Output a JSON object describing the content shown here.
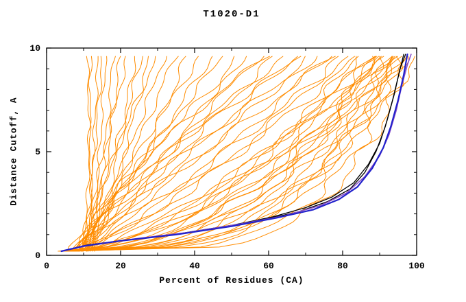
{
  "chart_data": {
    "type": "line",
    "title": "T1020-D1",
    "xlabel": "Percent of Residues (CA)",
    "ylabel": "Distance Cutoff, A",
    "xlim": [
      0,
      100
    ],
    "ylim": [
      0,
      10
    ],
    "x_ticks": [
      0,
      20,
      40,
      60,
      80,
      100
    ],
    "x_minor_ticks": [
      10,
      30,
      50,
      70,
      90
    ],
    "y_ticks": [
      0,
      5,
      10
    ],
    "y_minor_ticks": [
      1,
      2,
      3,
      4,
      6,
      7,
      8,
      9
    ],
    "grid": "off",
    "legend": "none",
    "colors": {
      "orange_models": "#ff8c00",
      "highlight_black": "#000000",
      "highlight_blue": "#2222cc",
      "highlight_purple": "#8a4fc8",
      "axis": "#000000",
      "background": "#ffffff"
    },
    "highlight_series": [
      {
        "name": "black-model-1",
        "color": "#000000",
        "width": 1.3,
        "points": [
          [
            4,
            0.2
          ],
          [
            9,
            0.4
          ],
          [
            18,
            0.65
          ],
          [
            32,
            0.95
          ],
          [
            46,
            1.3
          ],
          [
            58,
            1.7
          ],
          [
            68,
            2.1
          ],
          [
            76,
            2.6
          ],
          [
            82,
            3.2
          ],
          [
            86,
            4.0
          ],
          [
            89,
            5.0
          ],
          [
            91.5,
            6.2
          ],
          [
            93.5,
            7.5
          ],
          [
            95,
            8.6
          ],
          [
            96.5,
            9.7
          ]
        ]
      },
      {
        "name": "black-model-2",
        "color": "#000000",
        "width": 1.3,
        "points": [
          [
            4,
            0.2
          ],
          [
            11,
            0.5
          ],
          [
            22,
            0.75
          ],
          [
            36,
            1.05
          ],
          [
            50,
            1.45
          ],
          [
            61,
            1.85
          ],
          [
            70,
            2.3
          ],
          [
            77,
            2.8
          ],
          [
            83,
            3.5
          ],
          [
            87,
            4.4
          ],
          [
            90,
            5.4
          ],
          [
            92,
            6.5
          ],
          [
            94,
            7.8
          ],
          [
            95.5,
            9.0
          ],
          [
            97,
            9.7
          ]
        ]
      },
      {
        "name": "purple-model",
        "color": "#8a4fc8",
        "width": 1.6,
        "points": [
          [
            4,
            0.2
          ],
          [
            12,
            0.5
          ],
          [
            24,
            0.8
          ],
          [
            38,
            1.1
          ],
          [
            52,
            1.5
          ],
          [
            64,
            1.9
          ],
          [
            74,
            2.4
          ],
          [
            81,
            3.0
          ],
          [
            86,
            3.8
          ],
          [
            90,
            4.8
          ],
          [
            92.5,
            5.8
          ],
          [
            94.5,
            7.0
          ],
          [
            96,
            8.2
          ],
          [
            97.5,
            9.2
          ],
          [
            98.5,
            9.7
          ]
        ]
      },
      {
        "name": "blue-model",
        "color": "#2222cc",
        "width": 2.2,
        "points": [
          [
            4,
            0.2
          ],
          [
            10,
            0.45
          ],
          [
            20,
            0.7
          ],
          [
            35,
            1.0
          ],
          [
            50,
            1.4
          ],
          [
            62,
            1.8
          ],
          [
            72,
            2.2
          ],
          [
            79,
            2.7
          ],
          [
            84,
            3.3
          ],
          [
            88,
            4.2
          ],
          [
            91,
            5.2
          ],
          [
            93,
            6.2
          ],
          [
            95,
            7.5
          ],
          [
            96.5,
            8.7
          ],
          [
            97.5,
            9.7
          ]
        ]
      }
    ],
    "orange_series_param_format": "[percent_at_bottom, percent_at_top, shape_exponent] giving x(y)=start+(end-start)*((y-0.2)/9.5)^shape for y in [0.2, 9.7]",
    "orange_series_params": [
      [
        4,
        99,
        0.22
      ],
      [
        5,
        98,
        0.25
      ],
      [
        5,
        97,
        0.3
      ],
      [
        6,
        97,
        0.35
      ],
      [
        4,
        96,
        0.28
      ],
      [
        5,
        96,
        0.4
      ],
      [
        6,
        95,
        0.3
      ],
      [
        7,
        95,
        0.5
      ],
      [
        5,
        94,
        0.35
      ],
      [
        6,
        94,
        0.45
      ],
      [
        4,
        93,
        0.3
      ],
      [
        7,
        93,
        0.55
      ],
      [
        5,
        92,
        0.4
      ],
      [
        6,
        92,
        0.6
      ],
      [
        8,
        91,
        0.5
      ],
      [
        5,
        90,
        0.45
      ],
      [
        7,
        90,
        0.7
      ],
      [
        6,
        89,
        0.55
      ],
      [
        8,
        88,
        0.65
      ],
      [
        5,
        88,
        0.35
      ],
      [
        6,
        86,
        0.6
      ],
      [
        7,
        85,
        0.8
      ],
      [
        5,
        84,
        0.5
      ],
      [
        8,
        82,
        0.9
      ],
      [
        6,
        80,
        0.7
      ],
      [
        7,
        78,
        1.0
      ],
      [
        9,
        76,
        0.8
      ],
      [
        6,
        74,
        1.1
      ],
      [
        8,
        72,
        0.9
      ],
      [
        7,
        70,
        1.3
      ],
      [
        10,
        68,
        1.0
      ],
      [
        8,
        65,
        1.2
      ],
      [
        6,
        62,
        0.9
      ],
      [
        9,
        60,
        1.4
      ],
      [
        7,
        58,
        1.0
      ],
      [
        9,
        55,
        1.3
      ],
      [
        8,
        52,
        0.8
      ],
      [
        10,
        48,
        1.1
      ],
      [
        7,
        45,
        0.9
      ],
      [
        11,
        42,
        1.2
      ],
      [
        9,
        38,
        0.7
      ],
      [
        12,
        35,
        1.0
      ],
      [
        8,
        32,
        0.8
      ],
      [
        10,
        30,
        1.2
      ],
      [
        13,
        28,
        0.9
      ],
      [
        8,
        26,
        0.8
      ],
      [
        10,
        24,
        0.6
      ],
      [
        9,
        22,
        1.0
      ],
      [
        11,
        20,
        0.7
      ],
      [
        10,
        18,
        0.5
      ],
      [
        12,
        16,
        0.8
      ],
      [
        9,
        15,
        0.6
      ],
      [
        11,
        14,
        0.9
      ],
      [
        10,
        12,
        0.5
      ],
      [
        13,
        11,
        0.7
      ]
    ]
  }
}
